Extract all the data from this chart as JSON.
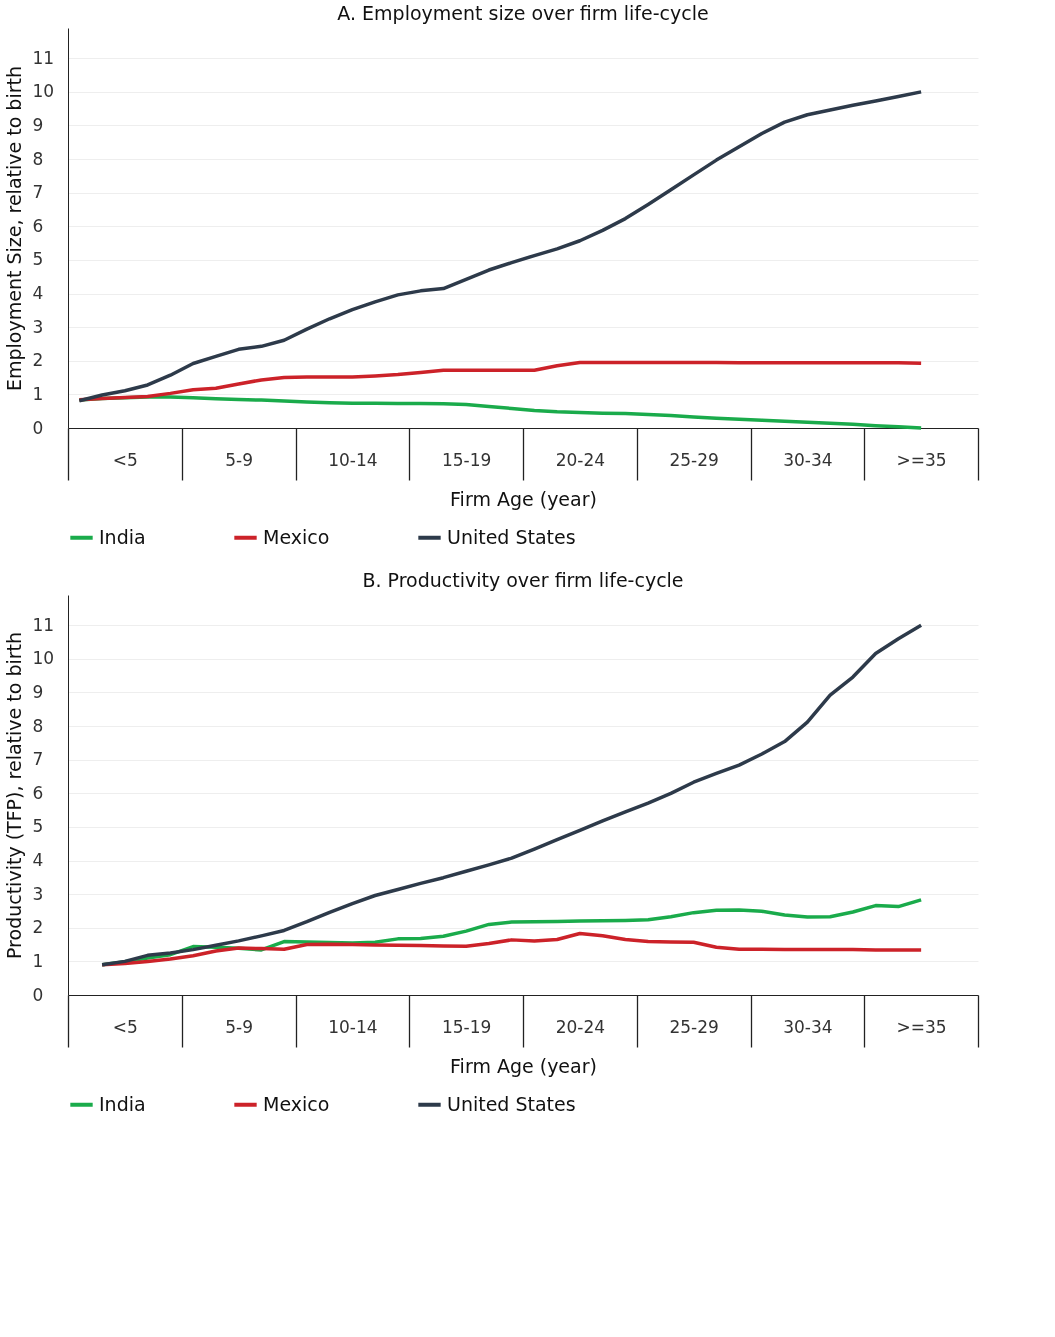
{
  "chart_data": [
    {
      "type": "line",
      "title": "A. Employment size over firm life-cycle",
      "xlabel": "Firm Age (year)",
      "ylabel": "Employment Size, relative to birth",
      "categories": [
        null,
        null,
        "<5",
        null,
        null,
        null,
        null,
        "5-9",
        null,
        null,
        null,
        null,
        "10-14",
        null,
        null,
        null,
        null,
        "15-19",
        null,
        null,
        null,
        null,
        "20-24",
        null,
        null,
        null,
        null,
        "25-29",
        null,
        null,
        null,
        null,
        "30-34",
        null,
        null,
        null,
        null,
        ">=35",
        null,
        null
      ],
      "ylim": [
        0,
        11.9
      ],
      "yticks": [
        0,
        1,
        2,
        3,
        4,
        5,
        6,
        7,
        8,
        9,
        10,
        11
      ],
      "grid": "y",
      "legend": "bottom",
      "marker": "none",
      "line_style": "solid",
      "series": [
        {
          "name": "India",
          "color": "#1aab4b",
          "values": [
            0.83,
            0.88,
            0.9,
            0.92,
            0.92,
            0.9,
            0.87,
            0.85,
            0.83,
            0.8,
            0.77,
            0.75,
            0.74,
            0.74,
            0.73,
            0.73,
            0.72,
            0.7,
            0.64,
            0.58,
            0.52,
            0.48,
            0.46,
            0.44,
            0.43,
            0.4,
            0.37,
            0.33,
            0.29,
            0.26,
            0.23,
            0.2,
            0.17,
            0.14,
            0.11,
            0.07,
            0.04,
            0,
            null,
            null
          ]
        },
        {
          "name": "Mexico",
          "color": "#cc2229",
          "values": [
            0.84,
            0.88,
            0.91,
            0.94,
            1.03,
            1.14,
            1.18,
            1.31,
            1.43,
            1.5,
            1.52,
            1.52,
            1.52,
            1.55,
            1.59,
            1.65,
            1.72,
            1.72,
            1.72,
            1.72,
            1.72,
            1.85,
            1.95,
            1.95,
            1.95,
            1.95,
            1.95,
            1.95,
            1.95,
            1.94,
            1.94,
            1.94,
            1.94,
            1.94,
            1.94,
            1.94,
            1.94,
            1.93,
            null,
            null
          ]
        },
        {
          "name": "United States",
          "color": "#2d3a4a",
          "values": [
            0.81,
            0.98,
            1.11,
            1.28,
            1.57,
            1.92,
            2.13,
            2.34,
            2.43,
            2.61,
            2.94,
            3.25,
            3.52,
            3.75,
            3.96,
            4.08,
            4.15,
            4.42,
            4.7,
            4.92,
            5.13,
            5.33,
            5.57,
            5.88,
            6.23,
            6.65,
            7.09,
            7.53,
            7.97,
            8.37,
            8.76,
            9.1,
            9.32,
            9.46,
            9.6,
            9.73,
            9.86,
            10.0,
            null,
            null
          ]
        }
      ]
    },
    {
      "type": "line",
      "title": "B. Productivity over firm life-cycle",
      "xlabel": "Firm Age (year)",
      "ylabel": "Productivity (TFP), relative to birth",
      "categories": [
        null,
        null,
        "<5",
        null,
        null,
        null,
        null,
        "5-9",
        null,
        null,
        null,
        null,
        "10-14",
        null,
        null,
        null,
        null,
        "15-19",
        null,
        null,
        null,
        null,
        "20-24",
        null,
        null,
        null,
        null,
        "25-29",
        null,
        null,
        null,
        null,
        "30-34",
        null,
        null,
        null,
        null,
        ">=35",
        null,
        null
      ],
      "ylim": [
        0,
        11.9
      ],
      "yticks": [
        0,
        1,
        2,
        3,
        4,
        5,
        6,
        7,
        8,
        9,
        10,
        11
      ],
      "grid": "y",
      "legend": "bottom",
      "marker": "none",
      "line_style": "solid",
      "series": [
        {
          "name": "India",
          "color": "#1aab4b",
          "values": [
            null,
            0.9,
            0.99,
            1.1,
            1.2,
            1.44,
            1.42,
            1.39,
            1.34,
            1.59,
            1.58,
            1.56,
            1.55,
            1.57,
            1.67,
            1.68,
            1.75,
            1.9,
            2.1,
            2.17,
            2.18,
            2.19,
            2.2,
            2.21,
            2.22,
            2.24,
            2.33,
            2.45,
            2.52,
            2.53,
            2.49,
            2.38,
            2.32,
            2.33,
            2.47,
            2.66,
            2.63,
            2.83,
            null,
            null
          ]
        },
        {
          "name": "Mexico",
          "color": "#cc2229",
          "values": [
            null,
            0.9,
            0.94,
            1.0,
            1.07,
            1.17,
            1.31,
            1.4,
            1.38,
            1.36,
            1.5,
            1.51,
            1.5,
            1.49,
            1.48,
            1.47,
            1.46,
            1.45,
            1.53,
            1.64,
            1.61,
            1.65,
            1.83,
            1.76,
            1.65,
            1.59,
            1.58,
            1.57,
            1.42,
            1.36,
            1.36,
            1.35,
            1.35,
            1.35,
            1.35,
            1.34,
            1.34,
            1.34,
            null,
            null
          ]
        },
        {
          "name": "United States",
          "color": "#2d3a4a",
          "values": [
            null,
            0.9,
            1.0,
            1.18,
            1.25,
            1.35,
            1.48,
            1.61,
            1.76,
            1.92,
            2.18,
            2.46,
            2.72,
            2.96,
            3.14,
            3.32,
            3.49,
            3.68,
            3.87,
            4.07,
            4.34,
            4.62,
            4.9,
            5.18,
            5.45,
            5.71,
            6.0,
            6.33,
            6.59,
            6.84,
            7.17,
            7.54,
            8.12,
            8.92,
            9.46,
            10.16,
            10.6,
            11.0,
            null,
            null
          ]
        }
      ]
    }
  ]
}
